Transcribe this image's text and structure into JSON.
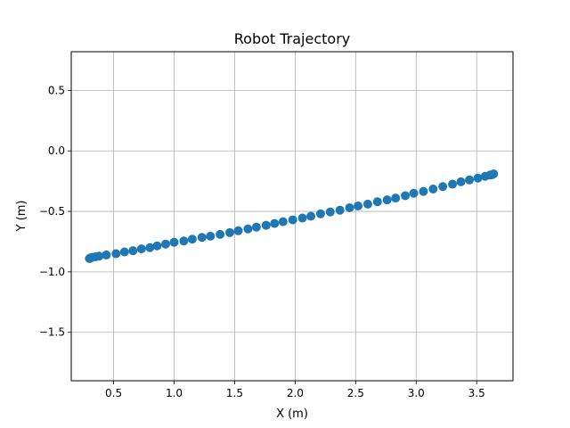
{
  "chart_data": {
    "type": "scatter",
    "title": "Robot Trajectory",
    "xlabel": "X (m)",
    "ylabel": "Y (m)",
    "xlim": [
      0.15,
      3.8
    ],
    "ylim": [
      -1.9,
      0.82
    ],
    "grid": true,
    "x_ticks": [
      0.5,
      1.0,
      1.5,
      2.0,
      2.5,
      3.0,
      3.5
    ],
    "x_tick_labels": [
      "0.5",
      "1.0",
      "1.5",
      "2.0",
      "2.5",
      "3.0",
      "3.5"
    ],
    "y_ticks": [
      0.5,
      0.0,
      -0.5,
      -1.0,
      -1.5
    ],
    "y_tick_labels": [
      "0.5",
      "0.0",
      "−0.5",
      "−1.0",
      "−1.5"
    ],
    "marker_color": "#1f77b4",
    "series": [
      {
        "x": [
          0.3,
          0.31,
          0.32,
          0.35,
          0.38,
          0.44,
          0.52,
          0.59,
          0.66,
          0.73,
          0.8,
          0.86,
          0.93,
          1.0,
          1.08,
          1.15,
          1.23,
          1.3,
          1.38,
          1.46,
          1.53,
          1.61,
          1.68,
          1.76,
          1.83,
          1.9,
          1.98,
          2.06,
          2.13,
          2.21,
          2.29,
          2.37,
          2.45,
          2.52,
          2.6,
          2.68,
          2.76,
          2.83,
          2.91,
          2.98,
          3.06,
          3.14,
          3.22,
          3.3,
          3.37,
          3.44,
          3.51,
          3.57,
          3.61,
          3.63,
          3.64
        ],
        "y": [
          -0.89,
          -0.885,
          -0.88,
          -0.875,
          -0.87,
          -0.86,
          -0.85,
          -0.835,
          -0.825,
          -0.81,
          -0.8,
          -0.785,
          -0.77,
          -0.755,
          -0.745,
          -0.73,
          -0.715,
          -0.705,
          -0.69,
          -0.675,
          -0.66,
          -0.645,
          -0.63,
          -0.615,
          -0.6,
          -0.585,
          -0.57,
          -0.555,
          -0.54,
          -0.52,
          -0.505,
          -0.49,
          -0.47,
          -0.455,
          -0.44,
          -0.42,
          -0.405,
          -0.39,
          -0.37,
          -0.35,
          -0.335,
          -0.315,
          -0.295,
          -0.275,
          -0.255,
          -0.24,
          -0.225,
          -0.21,
          -0.2,
          -0.195,
          -0.19
        ]
      }
    ]
  }
}
